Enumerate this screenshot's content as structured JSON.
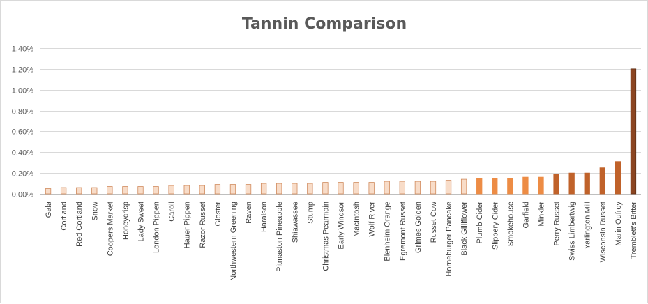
{
  "chart_data": {
    "type": "bar",
    "title": "Tannin Comparison",
    "xlabel": "",
    "ylabel": "",
    "ylim": [
      0,
      0.014
    ],
    "y_ticks": [
      {
        "value": 0,
        "label": "0.00%"
      },
      {
        "value": 0.002,
        "label": "0.20%"
      },
      {
        "value": 0.004,
        "label": "0.40%"
      },
      {
        "value": 0.006,
        "label": "0.60%"
      },
      {
        "value": 0.008,
        "label": "0.80%"
      },
      {
        "value": 0.01,
        "label": "1.00%"
      },
      {
        "value": 0.012,
        "label": "1.20%"
      },
      {
        "value": 0.014,
        "label": "1.40%"
      }
    ],
    "grid": true,
    "legend": "none",
    "categories": [
      "Gala",
      "Cortland",
      "Red Cortland",
      "Snow",
      "Coopers Market",
      "Honeycrisp",
      "Lady Sweet",
      "London Pippen",
      "Caroll",
      "Hauer Pippen",
      "Razor Russet",
      "Gloster",
      "Northwestern Greening",
      "Raven",
      "Haralson",
      "Pitmaston Pineapple",
      "Shiawassee",
      "Stump",
      "Christmas Pearmain",
      "Early Windsor",
      "MacIntosh",
      "Wolf River",
      "Blenheim Orange",
      "Egremont Russet",
      "Grimes Golden",
      "Russet Cow",
      "Horneburger Pancake",
      "Black Gilliflower",
      "Plumb Cider",
      "Slippery Cider",
      "Smokehouse",
      "Garfield",
      "Minkler",
      "Perry Russet",
      "Swiss Limbertwig",
      "Yarlington Mill",
      "Wisconsin Russet",
      "Marin Oufroy",
      "Tremblett's Bitter"
    ],
    "values": [
      0.0005,
      0.0006,
      0.0006,
      0.0006,
      0.0007,
      0.0007,
      0.0007,
      0.0007,
      0.0008,
      0.0008,
      0.0008,
      0.0009,
      0.0009,
      0.0009,
      0.001,
      0.001,
      0.001,
      0.001,
      0.0011,
      0.0011,
      0.0011,
      0.0011,
      0.0012,
      0.0012,
      0.0012,
      0.0012,
      0.0013,
      0.0014,
      0.0015,
      0.0015,
      0.0015,
      0.0016,
      0.0016,
      0.0019,
      0.002,
      0.002,
      0.0025,
      0.0031,
      0.012
    ],
    "colors": {
      "bar_light_fill": "#f8dcc8",
      "bar_light_edge": "#d08a5c",
      "bar_mid": "#ed8c45",
      "bar_dark": "#c0622a",
      "bar_darkest": "#8b4521",
      "title": "#595959",
      "grid": "#d9d9d9",
      "frame": "#d9d9d9"
    }
  }
}
